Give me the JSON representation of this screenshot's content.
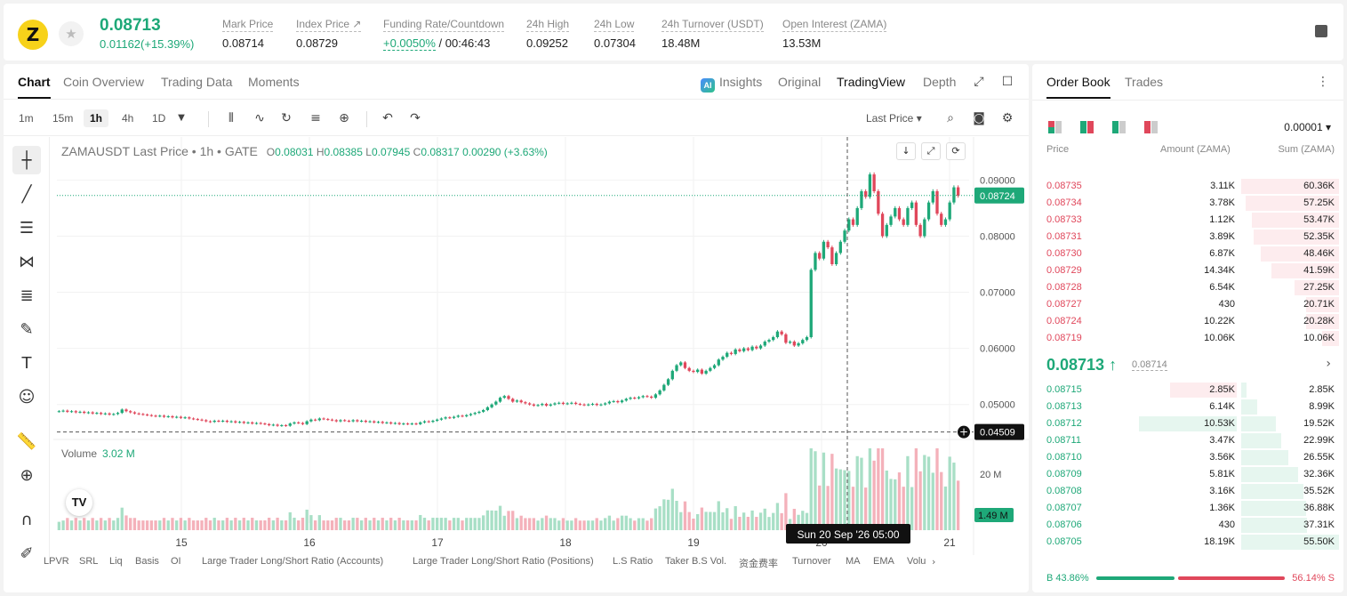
{
  "ticker": {
    "last_price": "0.08713",
    "change": "0.01162(+15.39%)",
    "stats": [
      {
        "label": "Mark Price",
        "value": "0.08714"
      },
      {
        "label": "Index Price ↗",
        "value": "0.08729"
      },
      {
        "label": "Funding Rate/Countdown",
        "value_green": "+0.0050%",
        "value": " / 00:46:43"
      },
      {
        "label": "24h High",
        "value": "0.09252"
      },
      {
        "label": "24h Low",
        "value": "0.07304"
      },
      {
        "label": "24h Turnover (USDT)",
        "value": "18.48M"
      },
      {
        "label": "Open Interest (ZAMA)",
        "value": "13.53M"
      }
    ]
  },
  "chart_tabs": {
    "left": [
      "Chart",
      "Coin Overview",
      "Trading Data",
      "Moments"
    ],
    "right": [
      "Insights",
      "Original",
      "TradingView",
      "Depth"
    ]
  },
  "toolbar": {
    "timeframes": [
      "1m",
      "15m",
      "1h",
      "4h",
      "1D"
    ],
    "price_type": "Last Price ▾"
  },
  "chart_legend": {
    "symbol": "ZAMAUSDT Last Price • 1h • GATE",
    "o": "0.08031",
    "h": "0.08385",
    "l": "0.07945",
    "c": "0.08317",
    "chg": "0.00290 (+3.63%)"
  },
  "volume_legend": {
    "label": "Volume",
    "value": "3.02 M"
  },
  "chart_data": {
    "type": "candlestick",
    "symbol": "ZAMAUSDT",
    "interval": "1h",
    "x_ticks": [
      "15",
      "16",
      "17",
      "18",
      "19",
      "20",
      "21"
    ],
    "y_ticks": [
      "0.09000",
      "0.08000",
      "0.07000",
      "0.06000",
      "0.05000"
    ],
    "ylim": [
      0.0425,
      0.0945
    ],
    "current_price_label": "0.08724",
    "crosshair_price_label": "0.04509",
    "crosshair_time_label": "Sun 20 Sep '26   05:00",
    "volume_ticks": [
      "20 M"
    ],
    "volume_current_label": "1.49 M",
    "closes": [
      0.0488,
      0.0489,
      0.0487,
      0.0488,
      0.0486,
      0.0487,
      0.0485,
      0.0486,
      0.0484,
      0.0485,
      0.0483,
      0.0484,
      0.0482,
      0.0483,
      0.0485,
      0.0491,
      0.0488,
      0.0486,
      0.0484,
      0.0483,
      0.0482,
      0.0481,
      0.048,
      0.0479,
      0.048,
      0.0478,
      0.0479,
      0.0477,
      0.0478,
      0.0476,
      0.0477,
      0.0475,
      0.0474,
      0.0473,
      0.0472,
      0.047,
      0.0469,
      0.0471,
      0.047,
      0.0471,
      0.0469,
      0.047,
      0.0468,
      0.0469,
      0.0467,
      0.0468,
      0.0466,
      0.0467,
      0.0466,
      0.0465,
      0.0463,
      0.0464,
      0.0462,
      0.0463,
      0.0462,
      0.0466,
      0.0468,
      0.0467,
      0.0465,
      0.047,
      0.0473,
      0.0472,
      0.0475,
      0.0474,
      0.0473,
      0.0472,
      0.047,
      0.0472,
      0.0471,
      0.047,
      0.0472,
      0.047,
      0.0471,
      0.0469,
      0.047,
      0.0468,
      0.0469,
      0.0467,
      0.0468,
      0.0466,
      0.0467,
      0.0465,
      0.0466,
      0.0465,
      0.0466,
      0.0465,
      0.0468,
      0.047,
      0.0469,
      0.0471,
      0.0473,
      0.0475,
      0.0477,
      0.0476,
      0.0478,
      0.048,
      0.0479,
      0.0481,
      0.0483,
      0.0485,
      0.0487,
      0.049,
      0.0495,
      0.05,
      0.0505,
      0.0512,
      0.0515,
      0.051,
      0.0505,
      0.0507,
      0.0504,
      0.0502,
      0.05,
      0.0498,
      0.0499,
      0.0501,
      0.0498,
      0.05,
      0.0502,
      0.0503,
      0.0501,
      0.0502,
      0.0503,
      0.0501,
      0.05,
      0.0499,
      0.05,
      0.0501,
      0.0499,
      0.05,
      0.0502,
      0.0505,
      0.0506,
      0.0504,
      0.0507,
      0.051,
      0.0512,
      0.0511,
      0.0513,
      0.0515,
      0.0514,
      0.0512,
      0.0518,
      0.0525,
      0.0535,
      0.0545,
      0.056,
      0.057,
      0.0575,
      0.0565,
      0.056,
      0.0558,
      0.0562,
      0.0555,
      0.056,
      0.0565,
      0.057,
      0.058,
      0.0585,
      0.0592,
      0.059,
      0.0598,
      0.0595,
      0.06,
      0.0597,
      0.0603,
      0.06,
      0.0605,
      0.0612,
      0.0615,
      0.062,
      0.063,
      0.0625,
      0.061,
      0.0612,
      0.0605,
      0.0609,
      0.0615,
      0.062,
      0.074,
      0.077,
      0.076,
      0.079,
      0.078,
      0.075,
      0.077,
      0.079,
      0.081,
      0.083,
      0.082,
      0.085,
      0.088,
      0.087,
      0.091,
      0.088,
      0.084,
      0.08,
      0.082,
      0.0835,
      0.085,
      0.083,
      0.082,
      0.085,
      0.086,
      0.082,
      0.08,
      0.083,
      0.086,
      0.088,
      0.084,
      0.082,
      0.083,
      0.086,
      0.0887,
      0.0872
    ]
  },
  "chart_buttons": [
    "↓",
    "⤢",
    "⟳"
  ],
  "indicators": [
    "LPVR",
    "SRL",
    "Liq",
    "Basis",
    "OI",
    "Large Trader Long/Short Ratio (Accounts)",
    "Large Trader Long/Short Ratio (Positions)",
    "L.S Ratio",
    "Taker B.S Vol.",
    "资金费率",
    "Turnover",
    "MA",
    "EMA",
    "Volu"
  ],
  "order_book": {
    "tabs": [
      "Order Book",
      "Trades"
    ],
    "precision": "0.00001 ▾",
    "headers": {
      "price": "Price",
      "amount": "Amount (ZAMA)",
      "sum": "Sum (ZAMA)"
    },
    "asks": [
      {
        "price": "0.08735",
        "amount": "3.11K",
        "sum": "60.36K",
        "depth": 1.0
      },
      {
        "price": "0.08734",
        "amount": "3.78K",
        "sum": "57.25K",
        "depth": 0.95
      },
      {
        "price": "0.08733",
        "amount": "1.12K",
        "sum": "53.47K",
        "depth": 0.89
      },
      {
        "price": "0.08731",
        "amount": "3.89K",
        "sum": "52.35K",
        "depth": 0.87
      },
      {
        "price": "0.08730",
        "amount": "6.87K",
        "sum": "48.46K",
        "depth": 0.8
      },
      {
        "price": "0.08729",
        "amount": "14.34K",
        "sum": "41.59K",
        "depth": 0.69
      },
      {
        "price": "0.08728",
        "amount": "6.54K",
        "sum": "27.25K",
        "depth": 0.45
      },
      {
        "price": "0.08727",
        "amount": "430",
        "sum": "20.71K",
        "depth": 0.34
      },
      {
        "price": "0.08724",
        "amount": "10.22K",
        "sum": "20.28K",
        "depth": 0.34
      },
      {
        "price": "0.08719",
        "amount": "10.06K",
        "sum": "10.06K",
        "depth": 0.17
      }
    ],
    "mid_price": "0.08713 ↑",
    "mark_price": "0.08714",
    "bids": [
      {
        "price": "0.08715",
        "amount": "2.85K",
        "sum": "2.85K",
        "depth": 0.05,
        "amt_depth": 0.15
      },
      {
        "price": "0.08713",
        "amount": "6.14K",
        "sum": "8.99K",
        "depth": 0.16,
        "amt_depth": 0
      },
      {
        "price": "0.08712",
        "amount": "10.53K",
        "sum": "19.52K",
        "depth": 0.35,
        "amt_depth": 0.22
      },
      {
        "price": "0.08711",
        "amount": "3.47K",
        "sum": "22.99K",
        "depth": 0.41,
        "amt_depth": 0
      },
      {
        "price": "0.08710",
        "amount": "3.56K",
        "sum": "26.55K",
        "depth": 0.48,
        "amt_depth": 0
      },
      {
        "price": "0.08709",
        "amount": "5.81K",
        "sum": "32.36K",
        "depth": 0.58,
        "amt_depth": 0
      },
      {
        "price": "0.08708",
        "amount": "3.16K",
        "sum": "35.52K",
        "depth": 0.64,
        "amt_depth": 0
      },
      {
        "price": "0.08707",
        "amount": "1.36K",
        "sum": "36.88K",
        "depth": 0.66,
        "amt_depth": 0
      },
      {
        "price": "0.08706",
        "amount": "430",
        "sum": "37.31K",
        "depth": 0.67,
        "amt_depth": 0
      },
      {
        "price": "0.08705",
        "amount": "18.19K",
        "sum": "55.50K",
        "depth": 1.0,
        "amt_depth": 0
      }
    ],
    "buy_ratio": "B 43.86%",
    "sell_ratio": "56.14% S"
  },
  "colors": {
    "up": "#1ea878",
    "down": "#e0475b",
    "up_light": "#e6f6ef",
    "down_light": "#fdecee"
  }
}
